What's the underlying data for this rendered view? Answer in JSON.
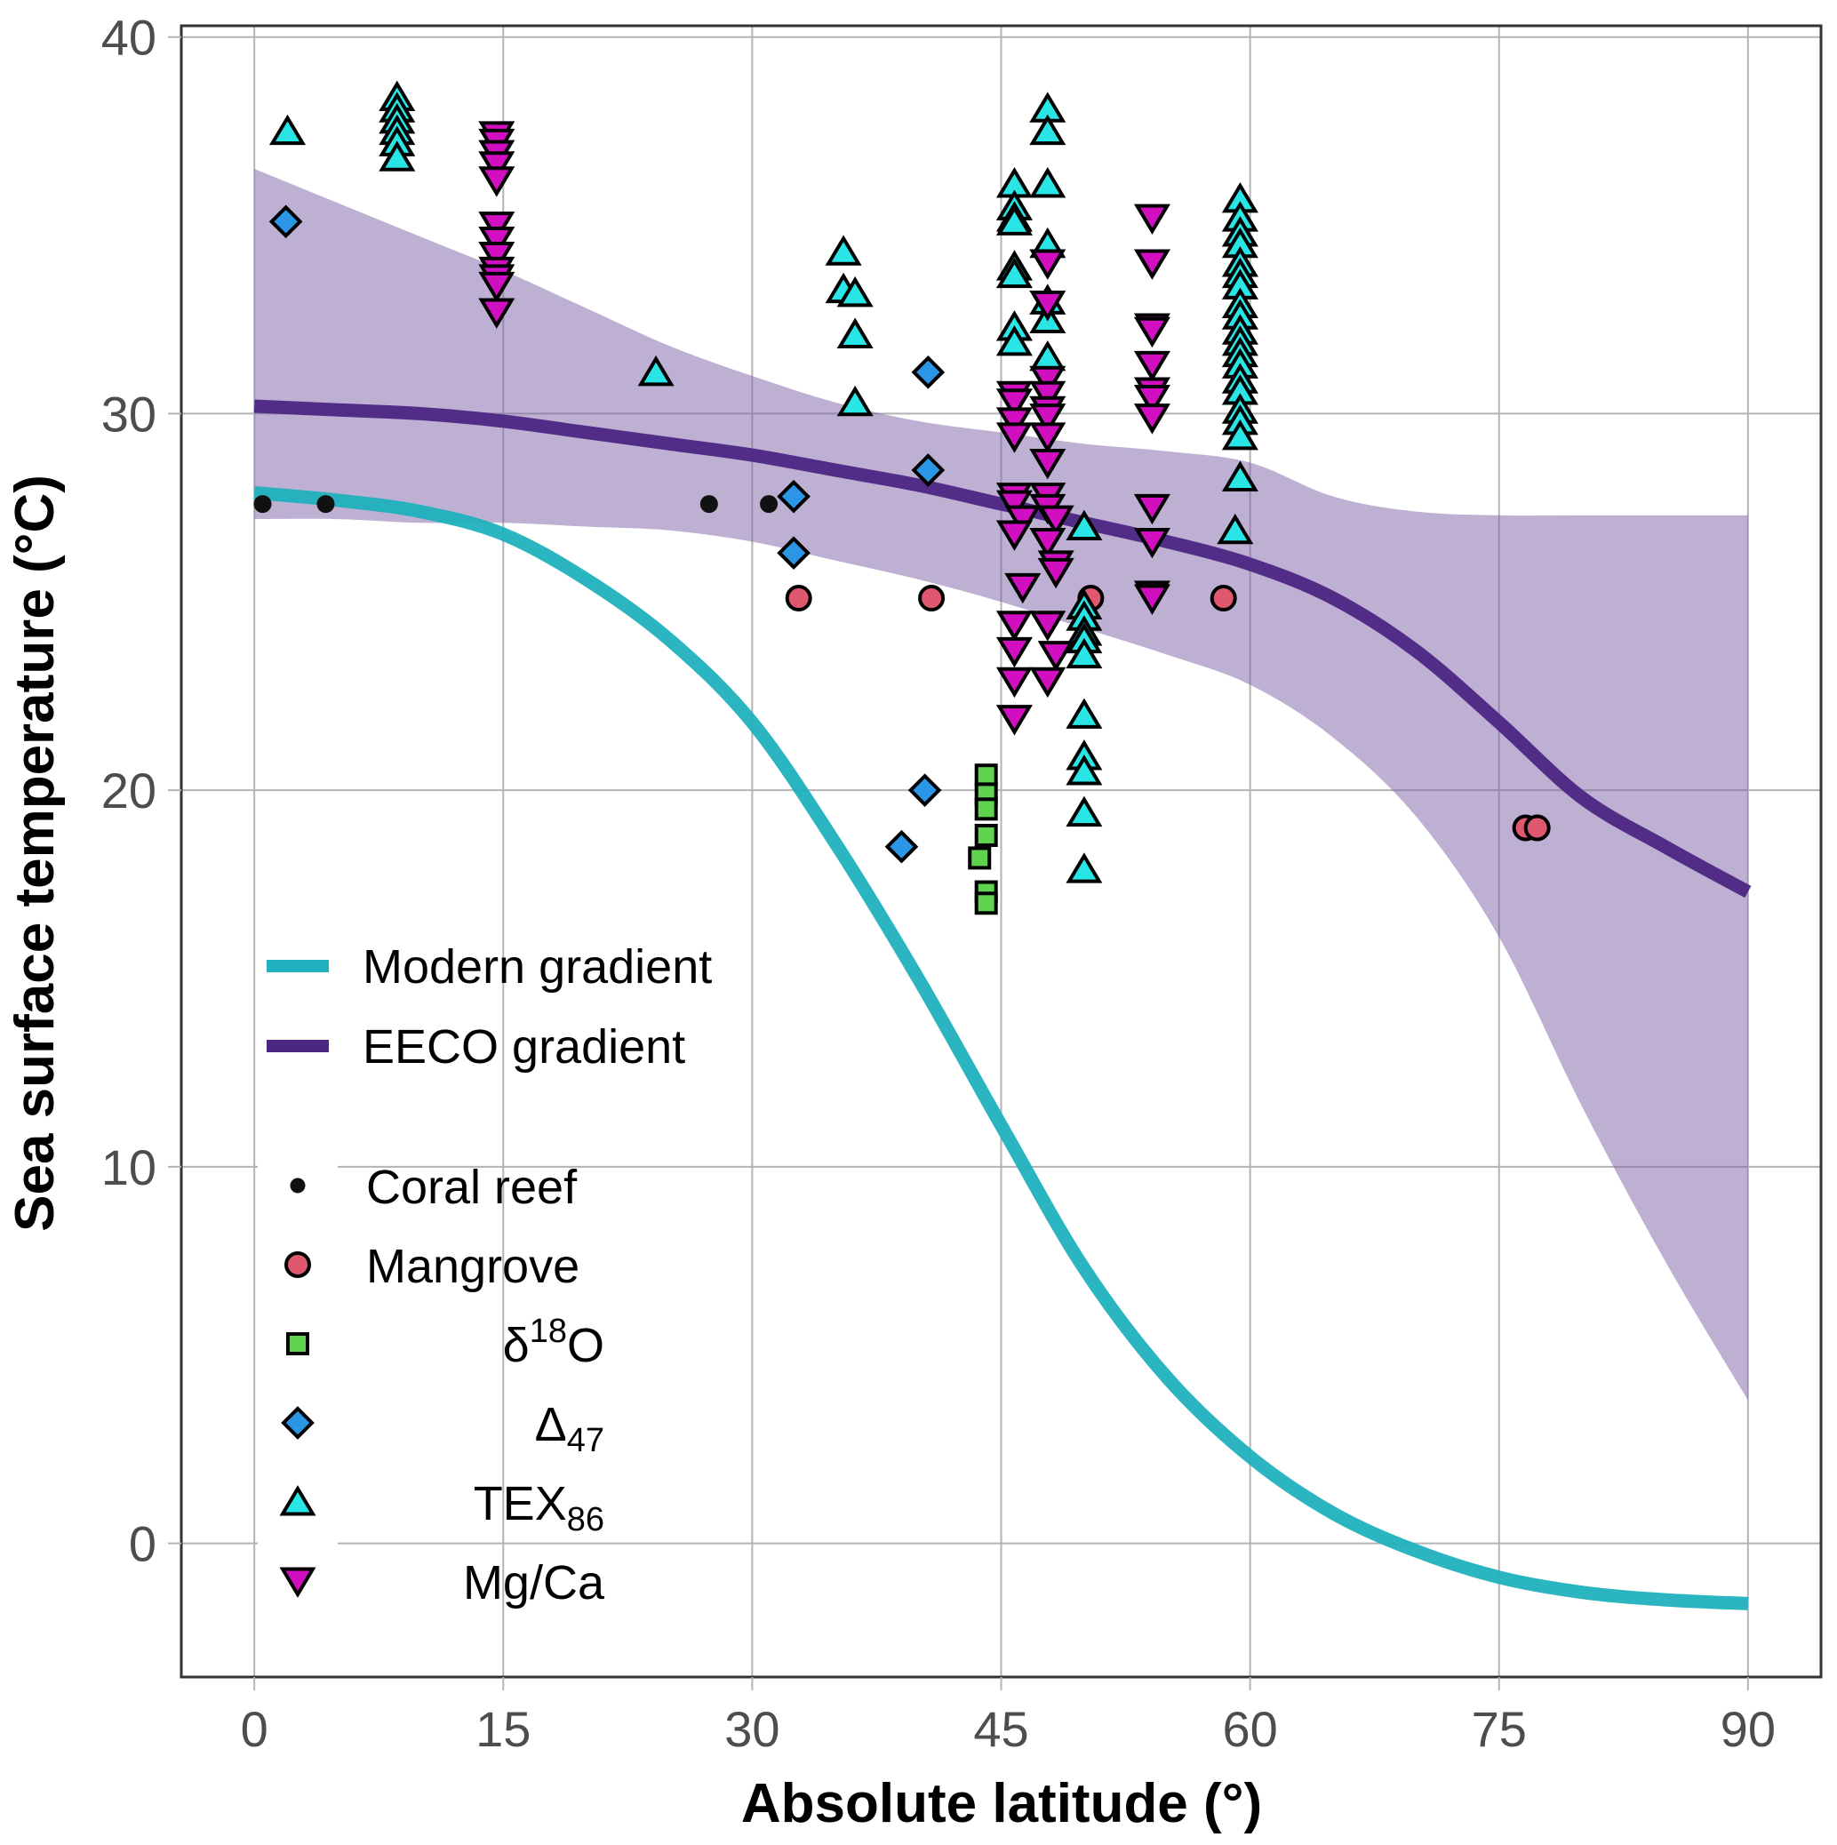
{
  "chart_data": {
    "type": "scatter",
    "title": "",
    "xlabel": "Absolute latitude (°)",
    "ylabel": "Sea surface temperature (°C)",
    "xlim": [
      -4.4,
      94.4
    ],
    "ylim": [
      -3.55,
      40.3
    ],
    "grid": true,
    "x_ticks": [
      0,
      15,
      30,
      45,
      60,
      75,
      90
    ],
    "x_tick_labels": [
      "0",
      "15",
      "30",
      "45",
      "60",
      "75",
      "90"
    ],
    "y_ticks": [
      0,
      10,
      20,
      30,
      40
    ],
    "y_tick_labels": [
      "0",
      "10",
      "20",
      "30",
      "40"
    ],
    "legend_position": "bottom-left",
    "lines": [
      {
        "name": "Modern gradient",
        "color": "#1fb1bd",
        "x": [
          0,
          5,
          10,
          15,
          20,
          25,
          30,
          35,
          40,
          45,
          50,
          55,
          60,
          65,
          70,
          75,
          80,
          85,
          90
        ],
        "y": [
          27.9,
          27.7,
          27.4,
          26.8,
          25.6,
          24.0,
          21.8,
          18.6,
          15.0,
          11.1,
          7.3,
          4.4,
          2.3,
          0.8,
          -0.2,
          -0.9,
          -1.3,
          -1.5,
          -1.6
        ]
      },
      {
        "name": "EECO gradient",
        "color": "#4b2683",
        "x": [
          0,
          5,
          10,
          15,
          20,
          25,
          30,
          35,
          40,
          45,
          50,
          55,
          60,
          65,
          70,
          75,
          80,
          85,
          90
        ],
        "y": [
          30.2,
          30.1,
          30.0,
          29.8,
          29.5,
          29.2,
          28.9,
          28.5,
          28.1,
          27.6,
          27.1,
          26.6,
          26.0,
          25.1,
          23.7,
          21.8,
          19.8,
          18.5,
          17.3
        ]
      }
    ],
    "band": {
      "name": "EECO gradient uncertainty",
      "color": "#7e62a8",
      "opacity": 0.5,
      "x": [
        0,
        5,
        10,
        15,
        20,
        25,
        30,
        35,
        40,
        45,
        50,
        55,
        60,
        65,
        70,
        75,
        80,
        85,
        90
      ],
      "upper": [
        36.5,
        35.6,
        34.7,
        33.8,
        32.8,
        31.8,
        31.0,
        30.3,
        29.8,
        29.5,
        29.2,
        29.0,
        28.7,
        27.8,
        27.4,
        27.3,
        27.3,
        27.3,
        27.3
      ],
      "lower": [
        27.2,
        27.2,
        27.1,
        27.1,
        27.0,
        26.9,
        26.6,
        26.1,
        25.6,
        25.0,
        24.3,
        23.6,
        22.8,
        21.4,
        19.3,
        16.1,
        11.6,
        7.5,
        3.8
      ]
    },
    "series": [
      {
        "name": "Coral reef",
        "label_main": "Coral reef",
        "label_sub": "",
        "label_sup": "",
        "marker": "dot",
        "fill": "#000000",
        "points": [
          [
            0.5,
            27.6
          ],
          [
            4.3,
            27.6
          ],
          [
            27.4,
            27.6
          ],
          [
            31.0,
            27.6
          ]
        ]
      },
      {
        "name": "Mangrove",
        "label_main": "Mangrove",
        "label_sub": "",
        "label_sup": "",
        "marker": "circle",
        "fill": "#e05870",
        "points": [
          [
            32.8,
            25.1
          ],
          [
            40.8,
            25.1
          ],
          [
            50.4,
            25.1
          ],
          [
            58.4,
            25.1
          ],
          [
            76.6,
            19.0
          ],
          [
            77.3,
            19.0
          ]
        ]
      },
      {
        "name": "δ18O",
        "label_main": "δ",
        "label_sup": "18",
        "label_tail": "O",
        "label_sub": "",
        "marker": "square",
        "fill": "#5fd34f",
        "points": [
          [
            44.1,
            20.4
          ],
          [
            44.1,
            19.9
          ],
          [
            44.1,
            19.5
          ],
          [
            44.1,
            18.8
          ],
          [
            43.7,
            18.2
          ],
          [
            44.1,
            17.3
          ],
          [
            44.1,
            17.0
          ]
        ]
      },
      {
        "name": "Δ47",
        "label_main": "Δ",
        "label_sub": "47",
        "label_sup": "",
        "marker": "diamond",
        "fill": "#2b95e6",
        "points": [
          [
            1.9,
            35.1
          ],
          [
            32.5,
            27.8
          ],
          [
            32.5,
            26.3
          ],
          [
            40.6,
            31.1
          ],
          [
            40.6,
            28.5
          ],
          [
            40.4,
            20.0
          ],
          [
            39.0,
            18.5
          ]
        ]
      },
      {
        "name": "TEX86",
        "label_main": "TEX",
        "label_sub": "86",
        "label_sup": "",
        "marker": "triangle-up",
        "fill": "#2ae5e5",
        "points": [
          [
            2.0,
            37.5
          ],
          [
            8.6,
            38.4
          ],
          [
            8.6,
            38.1
          ],
          [
            8.6,
            37.8
          ],
          [
            8.6,
            37.5
          ],
          [
            8.6,
            37.2
          ],
          [
            8.6,
            36.8
          ],
          [
            24.2,
            31.1
          ],
          [
            35.5,
            34.3
          ],
          [
            35.5,
            33.3
          ],
          [
            36.2,
            33.2
          ],
          [
            36.2,
            32.1
          ],
          [
            36.2,
            30.3
          ],
          [
            45.8,
            36.1
          ],
          [
            45.8,
            35.5
          ],
          [
            45.8,
            35.2
          ],
          [
            45.8,
            35.1
          ],
          [
            45.8,
            33.9
          ],
          [
            45.8,
            33.7
          ],
          [
            45.8,
            32.3
          ],
          [
            45.8,
            31.9
          ],
          [
            47.8,
            38.1
          ],
          [
            47.8,
            37.5
          ],
          [
            47.8,
            36.1
          ],
          [
            47.8,
            34.5
          ],
          [
            47.8,
            33.0
          ],
          [
            47.8,
            32.5
          ],
          [
            47.8,
            31.5
          ],
          [
            50.0,
            27.0
          ],
          [
            50.0,
            24.9
          ],
          [
            50.0,
            24.6
          ],
          [
            50.0,
            24.2
          ],
          [
            50.0,
            24.0
          ],
          [
            50.0,
            23.6
          ],
          [
            50.0,
            22.0
          ],
          [
            50.0,
            20.9
          ],
          [
            50.0,
            20.5
          ],
          [
            50.0,
            19.4
          ],
          [
            50.0,
            17.9
          ],
          [
            59.4,
            35.7
          ],
          [
            59.4,
            35.2
          ],
          [
            59.4,
            34.8
          ],
          [
            59.4,
            34.5
          ],
          [
            59.4,
            34.0
          ],
          [
            59.4,
            33.7
          ],
          [
            59.4,
            33.4
          ],
          [
            59.4,
            32.9
          ],
          [
            59.4,
            32.6
          ],
          [
            59.4,
            32.2
          ],
          [
            59.4,
            31.9
          ],
          [
            59.4,
            31.6
          ],
          [
            59.4,
            31.3
          ],
          [
            59.4,
            30.9
          ],
          [
            59.4,
            30.6
          ],
          [
            59.4,
            30.1
          ],
          [
            59.4,
            29.8
          ],
          [
            59.4,
            29.4
          ],
          [
            59.4,
            28.3
          ],
          [
            59.1,
            26.9
          ]
        ]
      },
      {
        "name": "Mg/Ca",
        "label_main": "Mg/Ca",
        "label_sub": "",
        "label_sup": "",
        "marker": "triangle-down",
        "fill": "#d10fc0",
        "points": [
          [
            14.6,
            37.4
          ],
          [
            14.6,
            37.2
          ],
          [
            14.6,
            36.9
          ],
          [
            14.6,
            36.6
          ],
          [
            14.6,
            36.2
          ],
          [
            14.6,
            35.0
          ],
          [
            14.6,
            34.6
          ],
          [
            14.6,
            34.2
          ],
          [
            14.6,
            33.8
          ],
          [
            14.6,
            33.6
          ],
          [
            14.6,
            33.4
          ],
          [
            14.6,
            32.7
          ],
          [
            45.8,
            30.5
          ],
          [
            45.8,
            30.3
          ],
          [
            45.8,
            29.8
          ],
          [
            45.8,
            29.4
          ],
          [
            45.8,
            27.8
          ],
          [
            45.8,
            27.6
          ],
          [
            46.3,
            27.2
          ],
          [
            45.8,
            26.8
          ],
          [
            46.3,
            25.4
          ],
          [
            45.8,
            24.4
          ],
          [
            45.8,
            23.7
          ],
          [
            45.8,
            22.9
          ],
          [
            45.8,
            21.9
          ],
          [
            47.8,
            34.0
          ],
          [
            47.8,
            32.9
          ],
          [
            47.8,
            30.9
          ],
          [
            47.8,
            30.5
          ],
          [
            47.8,
            30.1
          ],
          [
            47.8,
            29.9
          ],
          [
            47.8,
            29.4
          ],
          [
            47.8,
            28.7
          ],
          [
            47.8,
            27.8
          ],
          [
            47.8,
            27.5
          ],
          [
            48.3,
            27.2
          ],
          [
            47.8,
            26.6
          ],
          [
            48.3,
            26.0
          ],
          [
            48.3,
            25.8
          ],
          [
            47.8,
            24.4
          ],
          [
            48.3,
            23.6
          ],
          [
            47.8,
            22.9
          ],
          [
            54.1,
            35.2
          ],
          [
            54.1,
            34.0
          ],
          [
            54.1,
            32.3
          ],
          [
            54.1,
            32.2
          ],
          [
            54.1,
            31.3
          ],
          [
            54.1,
            30.6
          ],
          [
            54.1,
            30.4
          ],
          [
            54.1,
            29.9
          ],
          [
            54.1,
            27.5
          ],
          [
            54.1,
            26.6
          ],
          [
            54.1,
            25.2
          ],
          [
            54.1,
            25.1
          ]
        ]
      }
    ]
  }
}
